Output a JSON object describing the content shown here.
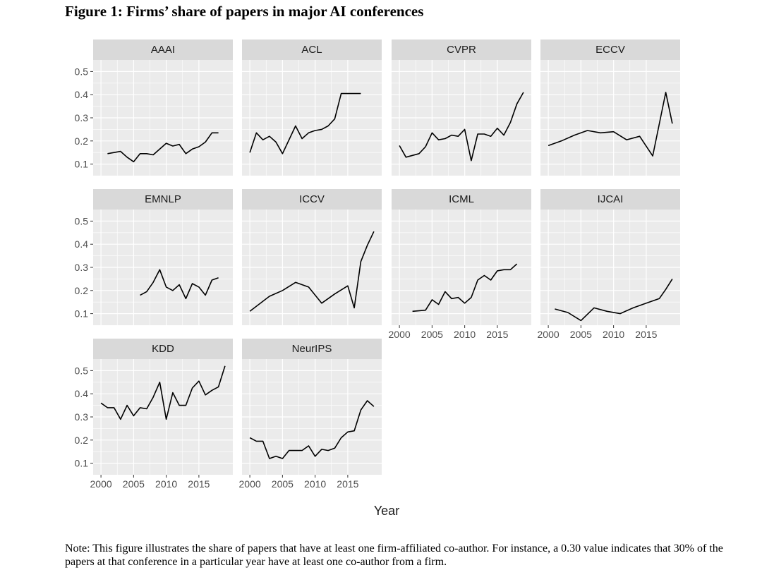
{
  "figure": {
    "title": "Figure 1: Firms’ share of papers in major AI conferences",
    "note": "Note: This figure illustrates the share of papers that have at least one firm-affiliated co-author. For instance, a 0.30 value indicates that 30% of the papers at that conference in a particular year have at least one co-author from a firm."
  },
  "chart_data": {
    "type": "line",
    "facet_layout": "wrap, 4 columns",
    "xlabel": "Year",
    "ylabel": "",
    "xlim": [
      1998.8,
      2020.2
    ],
    "ylim": [
      0.05,
      0.55
    ],
    "x_ticks": [
      2000,
      2005,
      2010,
      2015
    ],
    "y_ticks": [
      0.1,
      0.2,
      0.3,
      0.4,
      0.5
    ],
    "grid": true,
    "legend": "none",
    "colors": {
      "panel": "#ebebeb",
      "grid": "#ffffff",
      "strip": "#d9d9d9",
      "line": "#000000",
      "axis_text": "#4d4d4d"
    },
    "panels": [
      {
        "name": "AAAI",
        "x": [
          2001,
          2003,
          2004,
          2005,
          2006,
          2007,
          2008,
          2010,
          2011,
          2012,
          2013,
          2014,
          2015,
          2016,
          2017,
          2018
        ],
        "y": [
          0.145,
          0.155,
          0.13,
          0.11,
          0.145,
          0.145,
          0.14,
          0.19,
          0.178,
          0.185,
          0.145,
          0.165,
          0.175,
          0.195,
          0.235,
          0.235
        ]
      },
      {
        "name": "ACL",
        "x": [
          2000,
          2001,
          2002,
          2003,
          2004,
          2005,
          2007,
          2008,
          2009,
          2010,
          2011,
          2012,
          2013,
          2014,
          2015,
          2016,
          2017
        ],
        "y": [
          0.15,
          0.235,
          0.205,
          0.22,
          0.195,
          0.145,
          0.265,
          0.21,
          0.235,
          0.245,
          0.25,
          0.265,
          0.295,
          0.405,
          0.405,
          0.405,
          0.405
        ]
      },
      {
        "name": "CVPR",
        "x": [
          2000,
          2001,
          2003,
          2004,
          2005,
          2006,
          2007,
          2008,
          2009,
          2010,
          2011,
          2012,
          2013,
          2014,
          2015,
          2016,
          2017,
          2018,
          2019
        ],
        "y": [
          0.18,
          0.13,
          0.145,
          0.175,
          0.235,
          0.205,
          0.21,
          0.225,
          0.22,
          0.25,
          0.115,
          0.23,
          0.23,
          0.22,
          0.255,
          0.225,
          0.28,
          0.36,
          0.41
        ]
      },
      {
        "name": "ECCV",
        "x": [
          2000,
          2002,
          2004,
          2006,
          2008,
          2010,
          2012,
          2014,
          2016,
          2018,
          2019
        ],
        "y": [
          0.18,
          0.2,
          0.225,
          0.245,
          0.235,
          0.24,
          0.205,
          0.22,
          0.135,
          0.41,
          0.275
        ]
      },
      {
        "name": "EMNLP",
        "x": [
          2006,
          2007,
          2008,
          2009,
          2010,
          2011,
          2012,
          2013,
          2014,
          2015,
          2016,
          2017,
          2018
        ],
        "y": [
          0.18,
          0.195,
          0.235,
          0.29,
          0.215,
          0.2,
          0.225,
          0.165,
          0.23,
          0.215,
          0.18,
          0.245,
          0.255
        ]
      },
      {
        "name": "ICCV",
        "x": [
          2000,
          2003,
          2005,
          2007,
          2009,
          2011,
          2013,
          2015,
          2016,
          2017,
          2018,
          2019
        ],
        "y": [
          0.11,
          0.175,
          0.2,
          0.235,
          0.215,
          0.145,
          0.185,
          0.22,
          0.125,
          0.325,
          0.395,
          0.455
        ]
      },
      {
        "name": "ICML",
        "x": [
          2002,
          2004,
          2005,
          2006,
          2007,
          2008,
          2009,
          2010,
          2011,
          2012,
          2013,
          2014,
          2015,
          2016,
          2017,
          2018
        ],
        "y": [
          0.11,
          0.115,
          0.16,
          0.14,
          0.195,
          0.165,
          0.17,
          0.145,
          0.17,
          0.245,
          0.265,
          0.245,
          0.285,
          0.29,
          0.29,
          0.315
        ]
      },
      {
        "name": "IJCAI",
        "x": [
          2001,
          2003,
          2005,
          2007,
          2009,
          2011,
          2013,
          2015,
          2017,
          2018,
          2019
        ],
        "y": [
          0.12,
          0.105,
          0.07,
          0.125,
          0.11,
          0.1,
          0.125,
          0.145,
          0.165,
          0.205,
          0.25
        ]
      },
      {
        "name": "KDD",
        "x": [
          2000,
          2001,
          2002,
          2003,
          2004,
          2005,
          2006,
          2007,
          2008,
          2009,
          2010,
          2011,
          2012,
          2013,
          2014,
          2015,
          2016,
          2017,
          2018,
          2019
        ],
        "y": [
          0.36,
          0.34,
          0.34,
          0.29,
          0.35,
          0.305,
          0.34,
          0.335,
          0.385,
          0.45,
          0.29,
          0.405,
          0.35,
          0.35,
          0.425,
          0.455,
          0.395,
          0.415,
          0.43,
          0.52
        ]
      },
      {
        "name": "NeurIPS",
        "x": [
          2000,
          2001,
          2002,
          2003,
          2004,
          2005,
          2006,
          2007,
          2008,
          2009,
          2010,
          2011,
          2012,
          2013,
          2014,
          2015,
          2016,
          2017,
          2018,
          2019
        ],
        "y": [
          0.21,
          0.195,
          0.195,
          0.12,
          0.13,
          0.12,
          0.155,
          0.155,
          0.155,
          0.175,
          0.13,
          0.16,
          0.155,
          0.165,
          0.21,
          0.235,
          0.24,
          0.33,
          0.37,
          0.345
        ]
      }
    ]
  }
}
